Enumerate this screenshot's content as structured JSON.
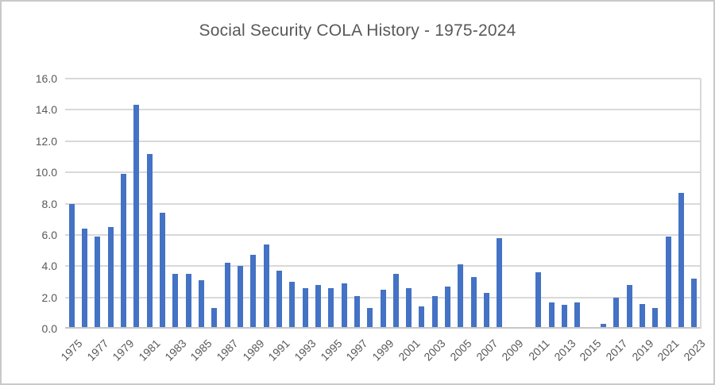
{
  "chart_data": {
    "type": "bar",
    "title": "Social Security COLA History - 1975-2024",
    "xlabel": "",
    "ylabel": "",
    "categories": [
      1975,
      1976,
      1977,
      1978,
      1979,
      1980,
      1981,
      1982,
      1983,
      1984,
      1985,
      1986,
      1987,
      1988,
      1989,
      1990,
      1991,
      1992,
      1993,
      1994,
      1995,
      1996,
      1997,
      1998,
      1999,
      2000,
      2001,
      2002,
      2003,
      2004,
      2005,
      2006,
      2007,
      2008,
      2009,
      2010,
      2011,
      2012,
      2013,
      2014,
      2015,
      2016,
      2017,
      2018,
      2019,
      2020,
      2021,
      2022,
      2023
    ],
    "values": [
      8.0,
      6.4,
      5.9,
      6.5,
      9.9,
      14.3,
      11.2,
      7.4,
      3.5,
      3.5,
      3.1,
      1.3,
      4.2,
      4.0,
      4.7,
      5.4,
      3.7,
      3.0,
      2.6,
      2.8,
      2.6,
      2.9,
      2.1,
      1.3,
      2.5,
      3.5,
      2.6,
      1.4,
      2.1,
      2.7,
      4.1,
      3.3,
      2.3,
      5.8,
      0.0,
      0.0,
      3.6,
      1.7,
      1.5,
      1.7,
      0.0,
      0.3,
      2.0,
      2.8,
      1.6,
      1.3,
      5.9,
      8.7,
      3.2
    ],
    "ylim": [
      0,
      16
    ],
    "ytick_step": 2,
    "ytick_labels": [
      "0.0",
      "2.0",
      "4.0",
      "6.0",
      "8.0",
      "10.0",
      "12.0",
      "14.0",
      "16.0"
    ],
    "xtick_labels": [
      "1975",
      "1977",
      "1979",
      "1981",
      "1983",
      "1985",
      "1987",
      "1989",
      "1991",
      "1993",
      "1995",
      "1997",
      "1999",
      "2001",
      "2003",
      "2005",
      "2007",
      "2009",
      "2011",
      "2013",
      "2015",
      "2017",
      "2019",
      "2021",
      "2023"
    ],
    "xtick_every": 2,
    "grid": true,
    "legend": false
  },
  "colors": {
    "bar": "#4472C4",
    "gridline": "#D9D9D9",
    "axis_line": "#C6C6C6",
    "text": "#595959",
    "frame_border": "#C9C9C9"
  }
}
